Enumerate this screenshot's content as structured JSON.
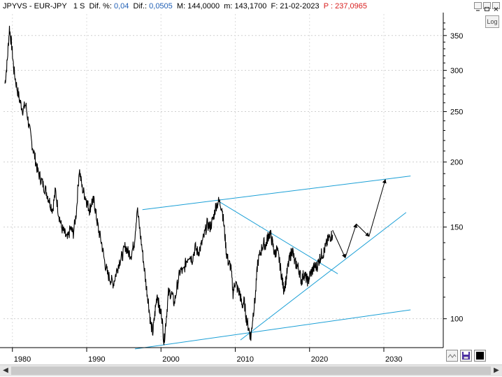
{
  "header": {
    "symbol": "JPYVS - EUR-JPY",
    "interval": "1 S",
    "dif_pct_label": "Dif. %:",
    "dif_pct_value": "0,04",
    "dif_label": "Dif.:",
    "dif_value": "0,0505",
    "max_label": "M:",
    "max_value": "144,0000",
    "min_label": "m:",
    "min_value": "143,1700",
    "date_label": "F:",
    "date_value": "21-02-2023",
    "price_label": "P :",
    "price_value": "237,0965"
  },
  "toolbar": {
    "log_label": "Log"
  },
  "colors": {
    "price": "#000000",
    "trendline": "#1a9fd6",
    "projection": "#000000",
    "header_value": "#1f5fb5",
    "header_price": "#d81e1e"
  },
  "chart_data": {
    "type": "line",
    "y_scale": "log",
    "ylim": [
      88,
      385
    ],
    "xlim": [
      1978.8,
      2038
    ],
    "y_ticks": [
      "350",
      "300",
      "250",
      "200",
      "150",
      "100"
    ],
    "y_tick_values": [
      350,
      300,
      250,
      200,
      150,
      100
    ],
    "x_ticks": [
      "1980",
      "1990",
      "2000",
      "2010",
      "2020",
      "2030"
    ],
    "x_tick_values": [
      1980,
      1990,
      2000,
      2010,
      2020,
      2030
    ],
    "series": [
      {
        "x": [
          1979.0,
          1979.3,
          1979.6,
          1979.9,
          1980.2,
          1980.6,
          1981.0,
          1981.4,
          1981.8,
          1982.2,
          1982.6,
          1983.0,
          1983.4,
          1983.8,
          1984.2,
          1984.6,
          1985.0,
          1985.4,
          1985.8,
          1986.2,
          1986.6,
          1987.0,
          1987.4,
          1987.8,
          1988.2,
          1988.6,
          1989.0,
          1989.4,
          1989.8,
          1990.1,
          1990.4,
          1990.7,
          1991.0,
          1991.3,
          1991.6,
          1992.0,
          1992.4,
          1992.8,
          1993.2,
          1993.6,
          1994.0,
          1994.4,
          1994.8,
          1995.2,
          1995.6,
          1996.0,
          1996.4,
          1996.8,
          1997.2,
          1997.6,
          1998.0,
          1998.3,
          1998.6,
          1998.9,
          1999.2,
          1999.5,
          1999.8,
          2000.1,
          2000.4,
          2000.7,
          2001.0,
          2001.4,
          2001.8,
          2002.2,
          2002.6,
          2003.0,
          2003.4,
          2003.8,
          2004.2,
          2004.6,
          2005.0,
          2005.4,
          2005.8,
          2006.2,
          2006.6,
          2007.0,
          2007.4,
          2007.8,
          2008.2,
          2008.5,
          2008.8,
          2009.1,
          2009.4,
          2009.7,
          2010.0,
          2010.3,
          2010.6,
          2010.9,
          2011.2,
          2011.5,
          2011.8,
          2012.1,
          2012.4,
          2012.7,
          2013.0,
          2013.4,
          2013.8,
          2014.1,
          2014.4,
          2014.7,
          2015.0,
          2015.3,
          2015.6,
          2015.9,
          2016.2,
          2016.5,
          2016.8,
          2017.1,
          2017.4,
          2017.7,
          2018.0,
          2018.3,
          2018.6,
          2018.9,
          2019.2,
          2019.5,
          2019.8,
          2020.1,
          2020.4,
          2020.7,
          2021.0,
          2021.3,
          2021.6,
          2021.9,
          2022.2,
          2022.5,
          2022.8,
          2023.1
        ],
        "y": [
          283,
          312,
          362,
          335,
          300,
          278,
          262,
          252,
          258,
          236,
          218,
          205,
          192,
          186,
          180,
          175,
          168,
          162,
          176,
          160,
          150,
          146,
          142,
          149,
          146,
          160,
          194,
          178,
          172,
          166,
          162,
          168,
          168,
          157,
          148,
          140,
          129,
          122,
          119,
          117,
          123,
          129,
          132,
          138,
          134,
          133,
          140,
          163,
          146,
          131,
          116,
          108,
          98,
          94,
          103,
          112,
          104,
          102,
          90,
          100,
          112,
          112,
          107,
          116,
          124,
          123,
          129,
          133,
          130,
          137,
          134,
          138,
          144,
          152,
          150,
          155,
          165,
          168,
          164,
          150,
          134,
          128,
          126,
          112,
          118,
          114,
          112,
          106,
          108,
          100,
          96,
          92,
          102,
          110,
          128,
          134,
          140,
          138,
          144,
          146,
          140,
          133,
          136,
          130,
          122,
          114,
          118,
          126,
          132,
          136,
          128,
          127,
          124,
          118,
          122,
          120,
          118,
          122,
          124,
          126,
          126,
          130,
          133,
          134,
          138,
          142,
          144,
          145
        ]
      },
      {
        "name": "",
        "x": [
          2023.1,
          2024.8,
          2026.3,
          2028.0,
          2030.2
        ],
        "y": [
          148,
          131,
          152,
          144,
          185
        ]
      }
    ],
    "trendlines": [
      {
        "x": [
          1997.5,
          2033.6
        ],
        "y": [
          162,
          188
        ]
      },
      {
        "x": [
          1996.5,
          2033.6
        ],
        "y": [
          87.5,
          104
        ]
      },
      {
        "x": [
          2007.8,
          2023.8
        ],
        "y": [
          168,
          122
        ]
      },
      {
        "x": [
          2010.7,
          2033.0
        ],
        "y": [
          91,
          160
        ]
      }
    ],
    "grid": true,
    "title": "",
    "xlabel": "",
    "ylabel": ""
  }
}
